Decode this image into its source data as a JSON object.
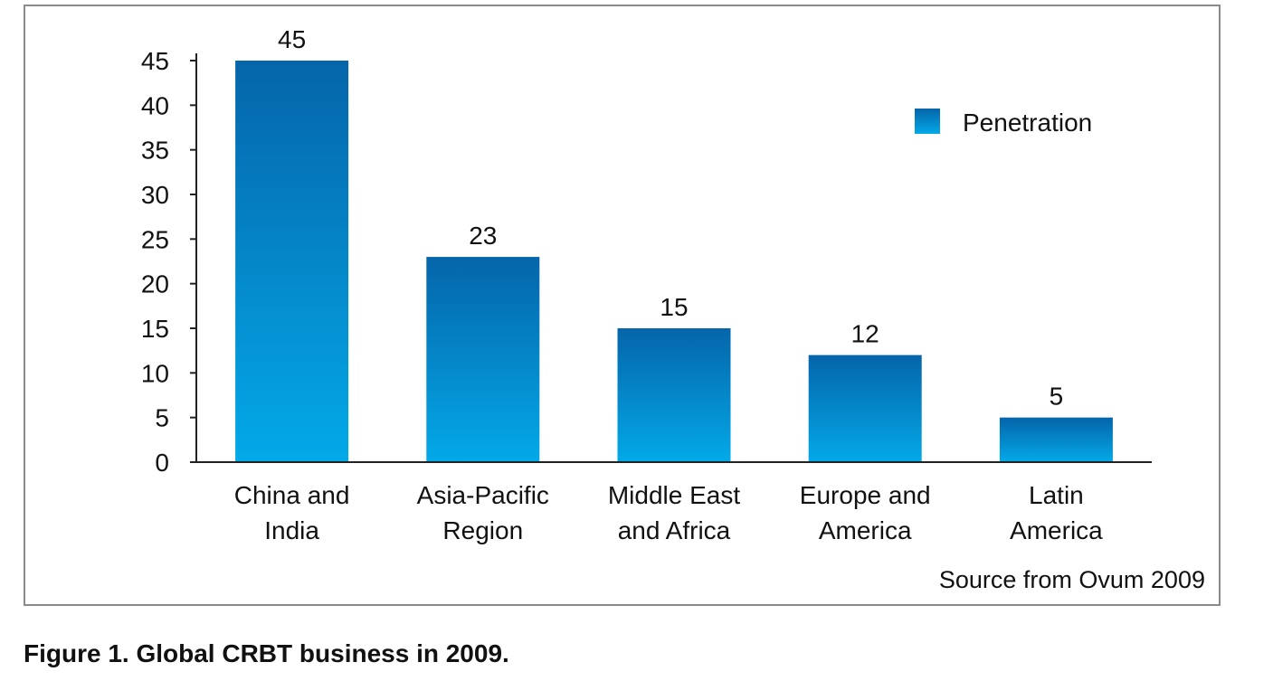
{
  "chart_data": {
    "type": "bar",
    "categories": [
      [
        "China and",
        "India"
      ],
      [
        "Asia-Pacific",
        "Region"
      ],
      [
        "Middle East",
        "and Africa"
      ],
      [
        "Europe and",
        "America"
      ],
      [
        "Latin",
        "America"
      ]
    ],
    "series": [
      {
        "name": "Penetration",
        "values": [
          45,
          23,
          15,
          12,
          5
        ]
      }
    ],
    "title": "",
    "xlabel": "",
    "ylabel": "",
    "ylim": [
      0,
      45
    ],
    "yticks": [
      0,
      5,
      10,
      15,
      20,
      25,
      30,
      35,
      40,
      45
    ],
    "data_labels": true,
    "grid": false,
    "legend_position": "top-right",
    "colors": {
      "bar_top": "#0565AA",
      "bar_bottom": "#03A9E8",
      "axis": "#222222",
      "frame": "#8A8A8A"
    }
  },
  "source_note": "Source from Ovum 2009",
  "caption": "Figure 1. Global CRBT business in 2009."
}
